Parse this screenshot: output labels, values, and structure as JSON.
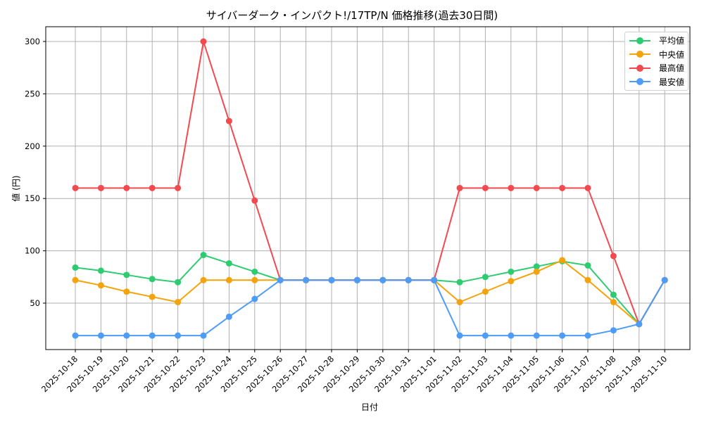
{
  "chart_data": {
    "type": "line",
    "title": "サイバーダーク・インパクト!/17TP/N 価格推移(過去30日間)",
    "xlabel": "日付",
    "ylabel": "値 (円)",
    "ylim": [
      5,
      313
    ],
    "yticks": [
      50,
      100,
      150,
      200,
      250,
      300
    ],
    "grid": true,
    "legend_position": "upper right",
    "categories": [
      "2025-10-18",
      "2025-10-19",
      "2025-10-20",
      "2025-10-21",
      "2025-10-22",
      "2025-10-23",
      "2025-10-24",
      "2025-10-25",
      "2025-10-26",
      "2025-10-27",
      "2025-10-28",
      "2025-10-29",
      "2025-10-30",
      "2025-10-31",
      "2025-11-01",
      "2025-11-02",
      "2025-11-03",
      "2025-11-04",
      "2025-11-05",
      "2025-11-06",
      "2025-11-07",
      "2025-11-08",
      "2025-11-09",
      "2025-11-10"
    ],
    "series": [
      {
        "name": "平均値",
        "color": "#2ecc71",
        "values": [
          84,
          81,
          77,
          73,
          70,
          96,
          88,
          80,
          72,
          72,
          72,
          72,
          72,
          72,
          72,
          70,
          75,
          80,
          85,
          90,
          86,
          58,
          30,
          72
        ]
      },
      {
        "name": "中央値",
        "color": "#f5a30a",
        "values": [
          72,
          67,
          61,
          56,
          51,
          72,
          72,
          72,
          72,
          72,
          72,
          72,
          72,
          72,
          72,
          51,
          61,
          71,
          80,
          91,
          72,
          51,
          30,
          72
        ]
      },
      {
        "name": "最高値",
        "color": "#f24a4f",
        "values": [
          160,
          160,
          160,
          160,
          160,
          300,
          224,
          148,
          72,
          72,
          72,
          72,
          72,
          72,
          72,
          160,
          160,
          160,
          160,
          160,
          160,
          95,
          30,
          72
        ]
      },
      {
        "name": "最安値",
        "color": "#4d9cf8",
        "values": [
          19,
          19,
          19,
          19,
          19,
          19,
          37,
          54,
          72,
          72,
          72,
          72,
          72,
          72,
          72,
          19,
          19,
          19,
          19,
          19,
          19,
          24,
          30,
          72
        ]
      }
    ]
  },
  "legend": {
    "items": [
      {
        "label": "平均値",
        "color": "#2ecc71"
      },
      {
        "label": "中央値",
        "color": "#f5a30a"
      },
      {
        "label": "最高値",
        "color": "#f24a4f"
      },
      {
        "label": "最安値",
        "color": "#4d9cf8"
      }
    ]
  }
}
